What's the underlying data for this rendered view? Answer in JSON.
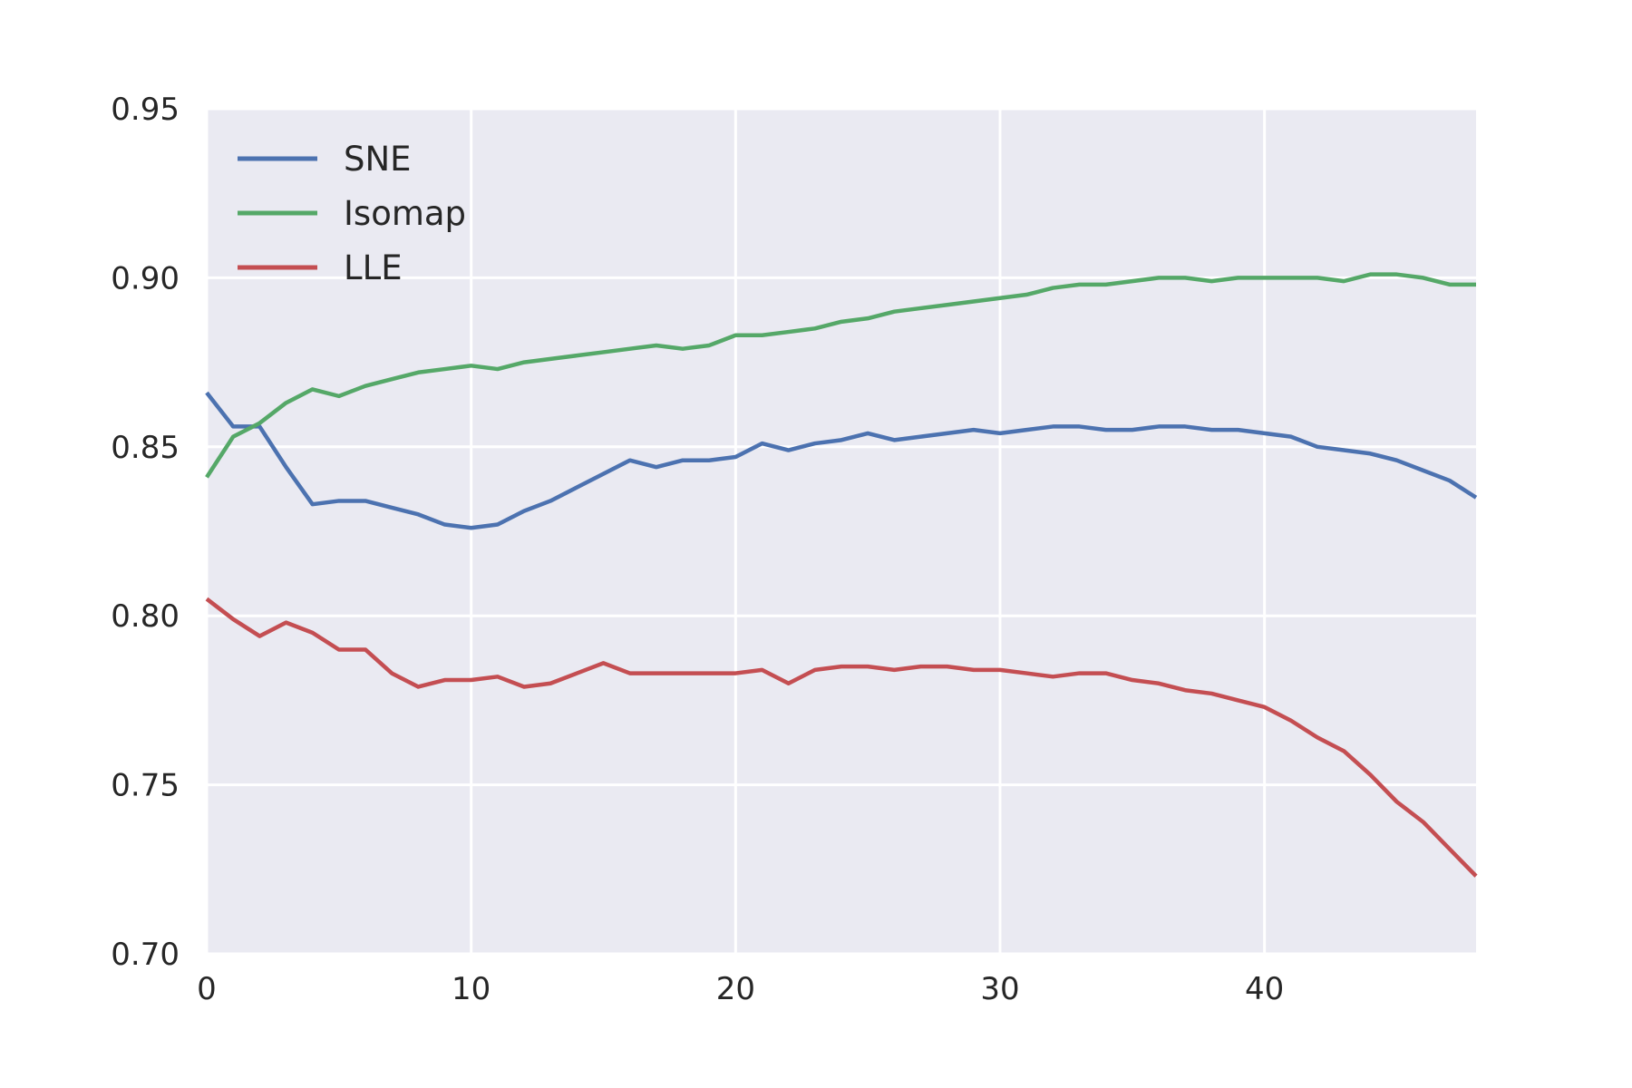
{
  "chart_data": {
    "type": "line",
    "title": "",
    "xlabel": "",
    "ylabel": "",
    "xlim": [
      0,
      48
    ],
    "ylim": [
      0.7,
      0.95
    ],
    "xticks": [
      0,
      10,
      20,
      30,
      40
    ],
    "xtick_labels": [
      "0",
      "10",
      "20",
      "30",
      "40"
    ],
    "yticks": [
      0.7,
      0.75,
      0.8,
      0.85,
      0.9,
      0.95
    ],
    "ytick_labels": [
      "0.70",
      "0.75",
      "0.80",
      "0.85",
      "0.90",
      "0.95"
    ],
    "grid": true,
    "legend_position": "top-left",
    "background": "#eaeaf2",
    "grid_color": "#ffffff",
    "x": [
      0,
      1,
      2,
      3,
      4,
      5,
      6,
      7,
      8,
      9,
      10,
      11,
      12,
      13,
      14,
      15,
      16,
      17,
      18,
      19,
      20,
      21,
      22,
      23,
      24,
      25,
      26,
      27,
      28,
      29,
      30,
      31,
      32,
      33,
      34,
      35,
      36,
      37,
      38,
      39,
      40,
      41,
      42,
      43,
      44,
      45,
      46,
      47,
      48
    ],
    "series": [
      {
        "name": "SNE",
        "color": "#4c72b0",
        "values": [
          0.866,
          0.856,
          0.856,
          0.844,
          0.833,
          0.834,
          0.834,
          0.832,
          0.83,
          0.827,
          0.826,
          0.827,
          0.831,
          0.834,
          0.838,
          0.842,
          0.846,
          0.844,
          0.846,
          0.846,
          0.847,
          0.851,
          0.849,
          0.851,
          0.852,
          0.854,
          0.852,
          0.853,
          0.854,
          0.855,
          0.854,
          0.855,
          0.856,
          0.856,
          0.855,
          0.855,
          0.856,
          0.856,
          0.855,
          0.855,
          0.854,
          0.853,
          0.85,
          0.849,
          0.848,
          0.846,
          0.843,
          0.84,
          0.835
        ]
      },
      {
        "name": "Isomap",
        "color": "#55a868",
        "values": [
          0.841,
          0.853,
          0.857,
          0.863,
          0.867,
          0.865,
          0.868,
          0.87,
          0.872,
          0.873,
          0.874,
          0.873,
          0.875,
          0.876,
          0.877,
          0.878,
          0.879,
          0.88,
          0.879,
          0.88,
          0.883,
          0.883,
          0.884,
          0.885,
          0.887,
          0.888,
          0.89,
          0.891,
          0.892,
          0.893,
          0.894,
          0.895,
          0.897,
          0.898,
          0.898,
          0.899,
          0.9,
          0.9,
          0.899,
          0.9,
          0.9,
          0.9,
          0.9,
          0.899,
          0.901,
          0.901,
          0.9,
          0.898,
          0.898
        ]
      },
      {
        "name": "LLE",
        "color": "#c44e52",
        "values": [
          0.805,
          0.799,
          0.794,
          0.798,
          0.795,
          0.79,
          0.79,
          0.783,
          0.779,
          0.781,
          0.781,
          0.782,
          0.779,
          0.78,
          0.783,
          0.786,
          0.783,
          0.783,
          0.783,
          0.783,
          0.783,
          0.784,
          0.78,
          0.784,
          0.785,
          0.785,
          0.784,
          0.785,
          0.785,
          0.784,
          0.784,
          0.783,
          0.782,
          0.783,
          0.783,
          0.781,
          0.78,
          0.778,
          0.777,
          0.775,
          0.773,
          0.769,
          0.764,
          0.76,
          0.753,
          0.745,
          0.739,
          0.731,
          0.723
        ]
      }
    ]
  }
}
